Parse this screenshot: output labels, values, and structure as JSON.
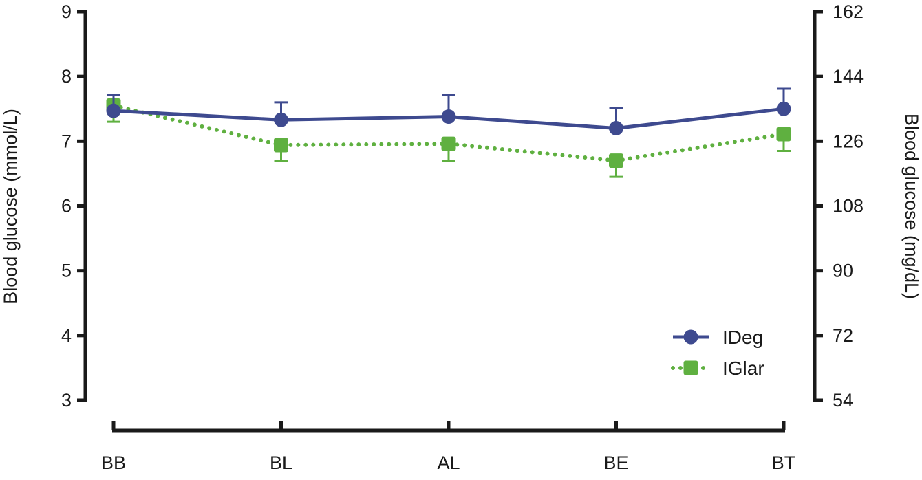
{
  "chart_data": {
    "type": "line",
    "categories": [
      "BB",
      "BL",
      "AL",
      "BE",
      "BT"
    ],
    "series": [
      {
        "name": "IDeg",
        "values": [
          7.47,
          7.33,
          7.38,
          7.2,
          7.5
        ],
        "error_plus": [
          0.24,
          0.27,
          0.34,
          0.31,
          0.31
        ],
        "color": "#3e4a8f",
        "line_style": "solid",
        "marker": "circle"
      },
      {
        "name": "IGlar",
        "values": [
          7.55,
          6.94,
          6.96,
          6.7,
          7.11
        ],
        "error_minus": [
          0.25,
          0.25,
          0.27,
          0.25,
          0.26
        ],
        "color": "#5fb040",
        "line_style": "dotted",
        "marker": "square"
      }
    ],
    "ylabel_left": "Blood glucose (mmol/L)",
    "ylabel_right": "Blood glucose (mg/dL)",
    "ylim_left": [
      3,
      9
    ],
    "yticks_left": [
      "3",
      "4",
      "5",
      "6",
      "7",
      "8",
      "9"
    ],
    "ylim_right": [
      54,
      162
    ],
    "yticks_right": [
      "54",
      "72",
      "90",
      "108",
      "126",
      "144",
      "162"
    ],
    "legend_position": "bottom-right",
    "grid": false
  }
}
